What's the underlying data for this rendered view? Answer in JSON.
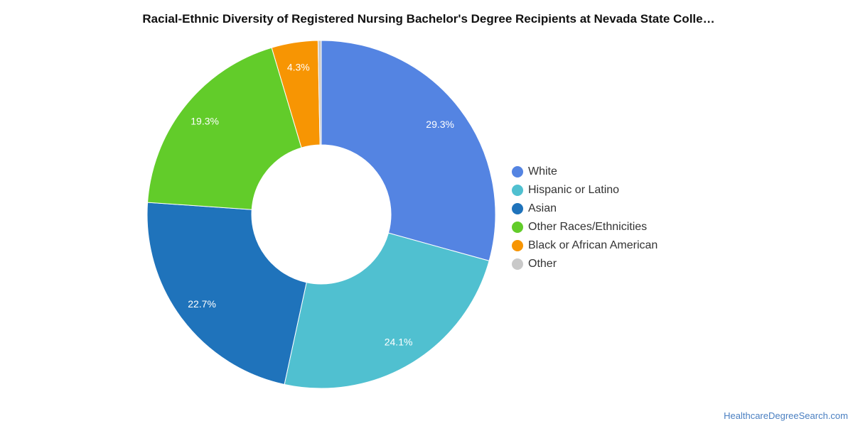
{
  "chart_data": {
    "type": "pie",
    "donut": true,
    "title": "Racial-Ethnic Diversity of Registered Nursing Bachelor's Degree Recipients at Nevada State Colle…",
    "categories": [
      "White",
      "Hispanic or Latino",
      "Asian",
      "Other Races/Ethnicities",
      "Black or African American",
      "Other"
    ],
    "values": [
      29.3,
      24.1,
      22.7,
      19.3,
      4.3,
      0.3
    ],
    "data_labels": [
      "29.3%",
      "24.1%",
      "22.7%",
      "19.3%",
      "4.3%",
      ""
    ],
    "colors": [
      "#5484e2",
      "#50c0d0",
      "#1f73bb",
      "#62cc2a",
      "#f79503",
      "#c9c9c9"
    ],
    "legend_position": "right",
    "start_angle_deg": 0,
    "direction": "clockwise"
  },
  "footer": {
    "source": "HealthcareDegreeSearch.com"
  }
}
